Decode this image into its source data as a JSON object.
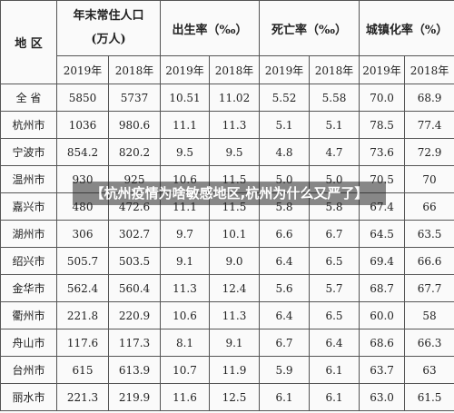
{
  "table": {
    "header": {
      "region": "地 区",
      "population": [
        "年末常住人口",
        "(万人)"
      ],
      "birth_rate": "出生率（‰）",
      "death_rate": "死亡率（‰）",
      "urbanization": "城镇化率（%）"
    },
    "years": [
      "2019年",
      "2018年"
    ],
    "rows": [
      [
        "全 省",
        "5850",
        "5737",
        "10.51",
        "11.02",
        "5.52",
        "5.58",
        "70.0",
        "68.9"
      ],
      [
        "杭州市",
        "1036",
        "980.6",
        "11.1",
        "11.3",
        "5.1",
        "5.1",
        "78.5",
        "77.4"
      ],
      [
        "宁波市",
        "854.2",
        "820.2",
        "9.5",
        "9.5",
        "4.8",
        "4.7",
        "73.6",
        "72.9"
      ],
      [
        "温州市",
        "930",
        "925",
        "10.6",
        "11.5",
        "5.0",
        "5.0",
        "70.5",
        "70"
      ],
      [
        "嘉兴市",
        "480",
        "472.6",
        "11.1",
        "11.5",
        "5.8",
        "5.8",
        "67.4",
        "66"
      ],
      [
        "湖州市",
        "306",
        "302.7",
        "9.7",
        "10.1",
        "6.6",
        "6.7",
        "64.5",
        "63.5"
      ],
      [
        "绍兴市",
        "505.7",
        "503.5",
        "9.1",
        "9.0",
        "6.4",
        "6.5",
        "69.4",
        "66.6"
      ],
      [
        "金华市",
        "562.4",
        "560.4",
        "11.3",
        "12.4",
        "5.6",
        "5.7",
        "68.7",
        "67.7"
      ],
      [
        "衢州市",
        "221.8",
        "220.9",
        "10.6",
        "11.3",
        "6.4",
        "6.5",
        "60.0",
        "58"
      ],
      [
        "舟山市",
        "117.6",
        "117.3",
        "8.1",
        "9.1",
        "6.7",
        "6.4",
        "68.6",
        "66.3"
      ],
      [
        "台州市",
        "615",
        "613.9",
        "10.7",
        "11.9",
        "5.9",
        "6.1",
        "63.7",
        "63"
      ],
      [
        "丽水市",
        "221.3",
        "219.9",
        "11.6",
        "12.5",
        "6.1",
        "6.1",
        "63.0",
        "61.5"
      ]
    ]
  },
  "caption": "【杭州疫情为啥敏感地区,杭州为什么又严了】"
}
